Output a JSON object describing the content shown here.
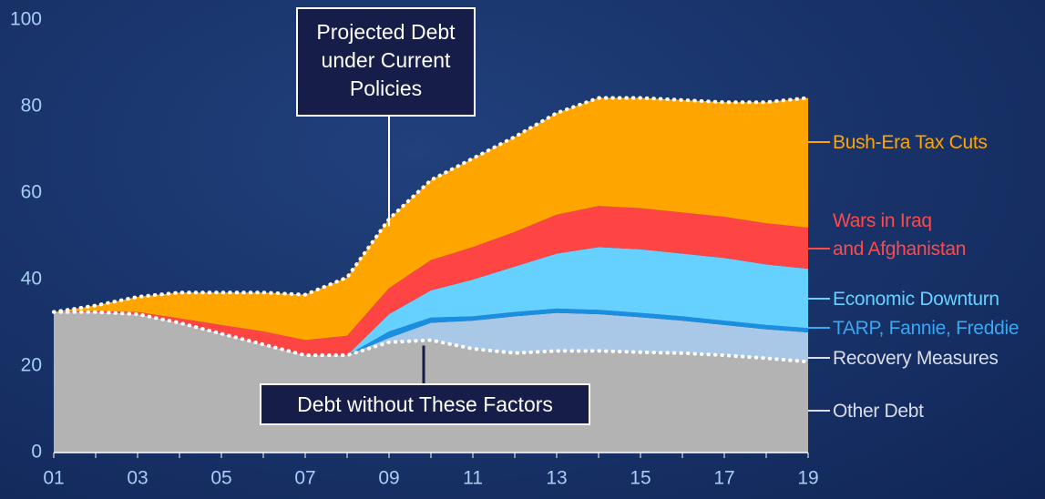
{
  "chart_data": {
    "type": "stacked_area",
    "categories": [
      "01",
      null,
      "03",
      null,
      "05",
      null,
      "07",
      null,
      "09",
      null,
      "11",
      null,
      "13",
      null,
      "15",
      null,
      "17",
      null,
      "19"
    ],
    "series": [
      {
        "name": "Other Debt",
        "color": "#b3b3b3",
        "label_color": "#d8dde8",
        "values": [
          32.5,
          32.5,
          32,
          30,
          27.5,
          25,
          22.5,
          22.5,
          25.5,
          26,
          24,
          23,
          23.5,
          23.5,
          23.2,
          23,
          22.5,
          21.8,
          21
        ]
      },
      {
        "name": "Recovery Measures",
        "color": "#a9c8e8",
        "label_color": "#d8dde8",
        "values": [
          0,
          0,
          0,
          0,
          0,
          0,
          0,
          0,
          1,
          4,
          6.5,
          8.5,
          8.8,
          8.5,
          8.1,
          7.5,
          7,
          6.7,
          6.8
        ]
      },
      {
        "name": "TARP, Fannie, Freddie",
        "color": "#1a8fe0",
        "label_color": "#3aa8f0",
        "values": [
          0,
          0,
          0,
          0,
          0,
          0,
          0,
          0,
          1.5,
          1.2,
          1,
          1,
          1,
          1,
          1,
          1,
          1,
          1,
          1
        ]
      },
      {
        "name": "Economic Downturn",
        "color": "#66d0ff",
        "label_color": "#66d0ff",
        "values": [
          0,
          0,
          0,
          0,
          0,
          0,
          0,
          0,
          4,
          6.3,
          8.5,
          10.5,
          12.7,
          14.5,
          14.7,
          14.5,
          14.5,
          14,
          13.7
        ]
      },
      {
        "name": "Wars in Iraq\nand Afghanistan",
        "color": "#ff4444",
        "label_color": "#ff4a4a",
        "values": [
          0,
          0.2,
          0.5,
          1,
          2,
          3,
          3.5,
          4.5,
          6,
          7,
          7.5,
          8,
          9,
          9.5,
          9.5,
          9.5,
          9.5,
          9.5,
          9.5
        ]
      },
      {
        "name": "Bush-Era Tax Cuts",
        "color": "#ffa500",
        "label_color": "#ffa500",
        "values": [
          0,
          1.3,
          3.5,
          6,
          7.5,
          9,
          10.5,
          13.5,
          16,
          18.5,
          20.5,
          22,
          23.5,
          25,
          25.5,
          26,
          26.5,
          28,
          30
        ]
      }
    ],
    "ylim": [
      0,
      100
    ],
    "yticks": [
      0,
      20,
      40,
      60,
      80,
      100
    ],
    "annotations": [
      "Projected Debt\nunder Current\nPolicies",
      "Debt without These Factors"
    ]
  }
}
